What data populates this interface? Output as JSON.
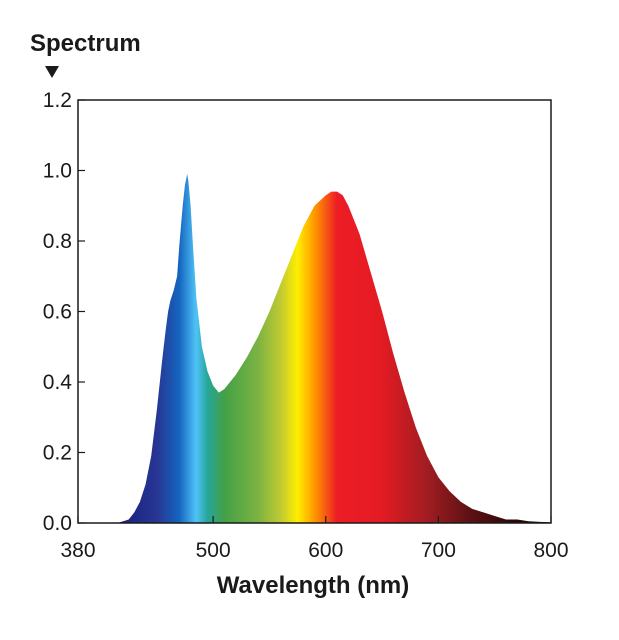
{
  "chart_data": {
    "type": "area",
    "ylabel": "Spectrum",
    "xlabel": "Wavelength (nm)",
    "xlim": [
      380,
      800
    ],
    "ylim": [
      0,
      1.2
    ],
    "x_ticks": [
      {
        "value": 380,
        "label": "380"
      },
      {
        "value": 500,
        "label": "500"
      },
      {
        "value": 600,
        "label": "600"
      },
      {
        "value": 700,
        "label": "700"
      },
      {
        "value": 800,
        "label": "800"
      }
    ],
    "y_ticks": [
      {
        "value": 0.0,
        "label": "0.0"
      },
      {
        "value": 0.2,
        "label": "0.2"
      },
      {
        "value": 0.4,
        "label": "0.4"
      },
      {
        "value": 0.6,
        "label": "0.6"
      },
      {
        "value": 0.8,
        "label": "0.8"
      },
      {
        "value": 1.0,
        "label": "1.0"
      },
      {
        "value": 1.2,
        "label": "1.2"
      }
    ],
    "grid": false,
    "series": [
      {
        "x": [
          415,
          425,
          430,
          435,
          440,
          445,
          450,
          455,
          458,
          460,
          462,
          465,
          468,
          470,
          473,
          475,
          477,
          478,
          480,
          482,
          485,
          490,
          495,
          500,
          505,
          510,
          515,
          520,
          530,
          540,
          550,
          560,
          570,
          580,
          590,
          600,
          605,
          610,
          615,
          620,
          630,
          640,
          650,
          660,
          670,
          680,
          690,
          700,
          710,
          720,
          730,
          740,
          750,
          760,
          770,
          780,
          790,
          800
        ],
        "y": [
          0.0,
          0.01,
          0.03,
          0.06,
          0.11,
          0.19,
          0.32,
          0.47,
          0.55,
          0.6,
          0.63,
          0.66,
          0.7,
          0.79,
          0.9,
          0.96,
          0.99,
          0.97,
          0.9,
          0.79,
          0.64,
          0.5,
          0.43,
          0.39,
          0.37,
          0.38,
          0.4,
          0.42,
          0.47,
          0.53,
          0.6,
          0.68,
          0.76,
          0.84,
          0.9,
          0.93,
          0.94,
          0.94,
          0.93,
          0.9,
          0.82,
          0.71,
          0.6,
          0.48,
          0.37,
          0.27,
          0.19,
          0.13,
          0.09,
          0.06,
          0.04,
          0.03,
          0.02,
          0.01,
          0.01,
          0.005,
          0.003,
          0.002
        ]
      }
    ],
    "gradient_colors": [
      {
        "wavelength": 420,
        "color": "#1a237e"
      },
      {
        "wavelength": 450,
        "color": "#283593"
      },
      {
        "wavelength": 470,
        "color": "#1565c0"
      },
      {
        "wavelength": 485,
        "color": "#4fc3f7"
      },
      {
        "wavelength": 495,
        "color": "#26a69a"
      },
      {
        "wavelength": 510,
        "color": "#43a047"
      },
      {
        "wavelength": 540,
        "color": "#7cb342"
      },
      {
        "wavelength": 560,
        "color": "#c0ca33"
      },
      {
        "wavelength": 575,
        "color": "#ffee00"
      },
      {
        "wavelength": 590,
        "color": "#ff9800"
      },
      {
        "wavelength": 610,
        "color": "#ee1c25"
      },
      {
        "wavelength": 650,
        "color": "#e31b23"
      },
      {
        "wavelength": 690,
        "color": "#a11d22"
      },
      {
        "wavelength": 730,
        "color": "#5a1012"
      },
      {
        "wavelength": 770,
        "color": "#2a0707"
      },
      {
        "wavelength": 800,
        "color": "#1a0505"
      }
    ]
  }
}
